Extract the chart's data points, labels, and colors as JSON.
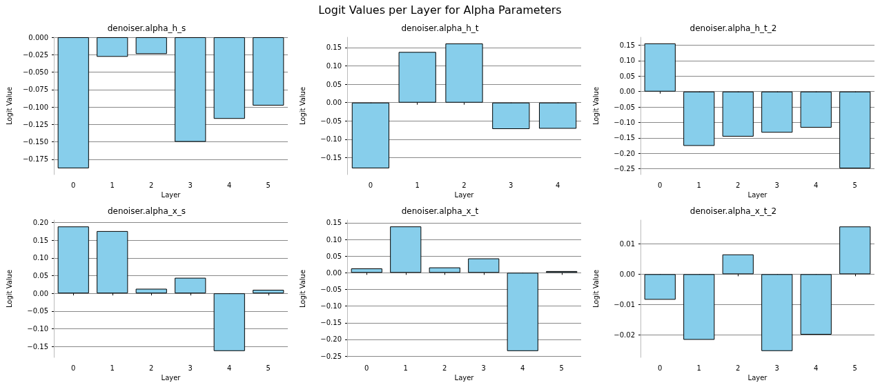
{
  "chart_data": [
    {
      "type": "bar",
      "title": "denoiser.alpha_h_s",
      "xlabel": "Layer",
      "ylabel": "Logit Value",
      "annotations": [
        "Logit Values per Layer for Alpha Parameters"
      ],
      "categories": [
        "0",
        "1",
        "2",
        "3",
        "4",
        "5"
      ],
      "values": [
        -0.188,
        -0.028,
        -0.024,
        -0.15,
        -0.117,
        -0.098
      ],
      "color": "#87ceeb",
      "ylim": [
        -0.197,
        0
      ],
      "yticks": [
        {
          "value": -0.175,
          "label": "−0.175"
        },
        {
          "value": -0.15,
          "label": "−0.150"
        },
        {
          "value": -0.125,
          "label": "−0.125"
        },
        {
          "value": -0.1,
          "label": "−0.100"
        },
        {
          "value": -0.075,
          "label": "−0.075"
        },
        {
          "value": -0.05,
          "label": "−0.050"
        },
        {
          "value": -0.025,
          "label": "−0.025"
        },
        {
          "value": 0,
          "label": "0.000"
        }
      ],
      "grid": "y"
    },
    {
      "type": "bar",
      "title": "denoiser.alpha_h_t",
      "xlabel": "Layer",
      "ylabel": "Logit Value",
      "categories": [
        "0",
        "1",
        "2",
        "3",
        "4"
      ],
      "values": [
        -0.179,
        0.138,
        0.161,
        -0.072,
        -0.071
      ],
      "color": "#87ceeb",
      "ylim": [
        -0.196,
        0.178
      ],
      "yticks": [
        {
          "value": -0.15,
          "label": "−0.15"
        },
        {
          "value": -0.1,
          "label": "−0.10"
        },
        {
          "value": -0.05,
          "label": "−0.05"
        },
        {
          "value": 0,
          "label": "0.00"
        },
        {
          "value": 0.05,
          "label": "0.05"
        },
        {
          "value": 0.1,
          "label": "0.10"
        },
        {
          "value": 0.15,
          "label": "0.15"
        }
      ],
      "grid": "y"
    },
    {
      "type": "bar",
      "title": "denoiser.alpha_h_t_2",
      "xlabel": "Layer",
      "ylabel": "Logit Value",
      "categories": [
        "0",
        "1",
        "2",
        "3",
        "4",
        "5"
      ],
      "values": [
        0.156,
        -0.176,
        -0.146,
        -0.133,
        -0.117,
        -0.249
      ],
      "color": "#87ceeb",
      "ylim": [
        -0.269,
        0.176
      ],
      "yticks": [
        {
          "value": -0.25,
          "label": "−0.25"
        },
        {
          "value": -0.2,
          "label": "−0.20"
        },
        {
          "value": -0.15,
          "label": "−0.15"
        },
        {
          "value": -0.1,
          "label": "−0.10"
        },
        {
          "value": -0.05,
          "label": "−0.05"
        },
        {
          "value": 0,
          "label": "0.00"
        },
        {
          "value": 0.05,
          "label": "0.05"
        },
        {
          "value": 0.1,
          "label": "0.10"
        },
        {
          "value": 0.15,
          "label": "0.15"
        }
      ],
      "grid": "y"
    },
    {
      "type": "bar",
      "title": "denoiser.alpha_x_s",
      "xlabel": "Layer",
      "ylabel": "Logit Value",
      "categories": [
        "0",
        "1",
        "2",
        "3",
        "4",
        "5"
      ],
      "values": [
        0.189,
        0.176,
        0.013,
        0.044,
        -0.163,
        0.01
      ],
      "color": "#87ceeb",
      "ylim": [
        -0.181,
        0.207
      ],
      "yticks": [
        {
          "value": -0.15,
          "label": "−0.15"
        },
        {
          "value": -0.1,
          "label": "−0.10"
        },
        {
          "value": -0.05,
          "label": "−0.05"
        },
        {
          "value": 0,
          "label": "0.00"
        },
        {
          "value": 0.05,
          "label": "0.05"
        },
        {
          "value": 0.1,
          "label": "0.10"
        },
        {
          "value": 0.15,
          "label": "0.15"
        },
        {
          "value": 0.2,
          "label": "0.20"
        }
      ],
      "grid": "y"
    },
    {
      "type": "bar",
      "title": "denoiser.alpha_x_t",
      "xlabel": "Layer",
      "ylabel": "Logit Value",
      "categories": [
        "0",
        "1",
        "2",
        "3",
        "4",
        "5"
      ],
      "values": [
        0.013,
        0.139,
        0.016,
        0.043,
        -0.235,
        0.005
      ],
      "color": "#87ceeb",
      "ylim": [
        -0.254,
        0.158
      ],
      "yticks": [
        {
          "value": -0.25,
          "label": "−0.25"
        },
        {
          "value": -0.2,
          "label": "−0.20"
        },
        {
          "value": -0.15,
          "label": "−0.15"
        },
        {
          "value": -0.1,
          "label": "−0.10"
        },
        {
          "value": -0.05,
          "label": "−0.05"
        },
        {
          "value": 0,
          "label": "0.00"
        },
        {
          "value": 0.05,
          "label": "0.05"
        },
        {
          "value": 0.1,
          "label": "0.10"
        },
        {
          "value": 0.15,
          "label": "0.15"
        }
      ],
      "grid": "y"
    },
    {
      "type": "bar",
      "title": "denoiser.alpha_x_t_2",
      "xlabel": "Layer",
      "ylabel": "Logit Value",
      "categories": [
        "0",
        "1",
        "2",
        "3",
        "4",
        "5"
      ],
      "values": [
        -0.0084,
        -0.0216,
        0.0065,
        -0.0253,
        -0.0199,
        0.0157
      ],
      "color": "#87ceeb",
      "ylim": [
        -0.0274,
        0.0178
      ],
      "yticks": [
        {
          "value": -0.02,
          "label": "−0.02"
        },
        {
          "value": -0.01,
          "label": "−0.01"
        },
        {
          "value": 0,
          "label": "0.00"
        },
        {
          "value": 0.01,
          "label": "0.01"
        }
      ],
      "grid": "y"
    }
  ]
}
